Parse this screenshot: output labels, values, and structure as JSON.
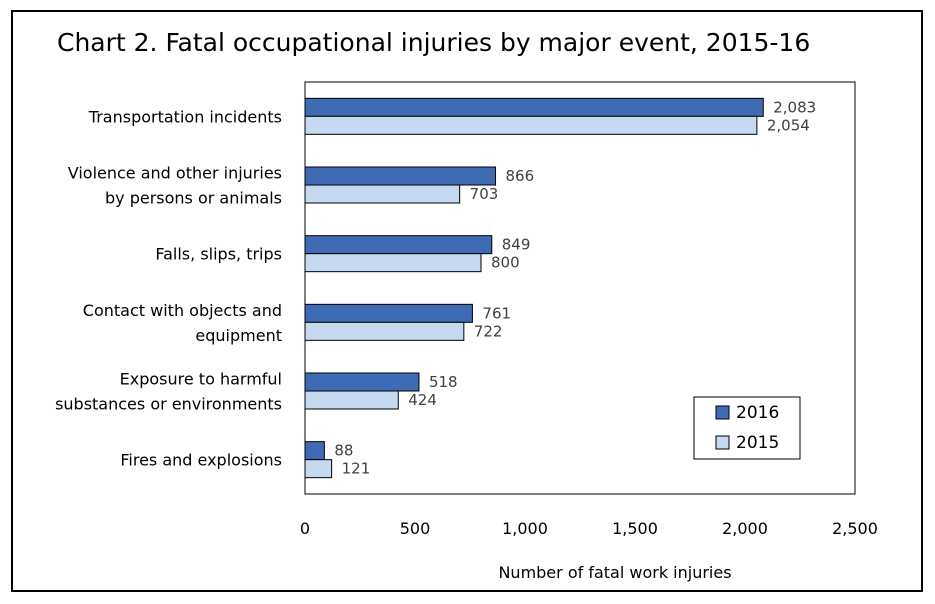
{
  "chart_data": {
    "type": "bar",
    "orientation": "horizontal",
    "title": "Chart 2. Fatal occupational injuries by major event, 2015-16",
    "categories": [
      [
        "Transportation incidents"
      ],
      [
        "Violence and other injuries",
        "by persons or animals"
      ],
      [
        "Falls, slips, trips"
      ],
      [
        "Contact with objects and",
        "equipment"
      ],
      [
        "Exposure to harmful",
        "substances or environments"
      ],
      [
        "Fires and explosions"
      ]
    ],
    "series": [
      {
        "name": "2016",
        "values": [
          2083,
          866,
          849,
          761,
          518,
          88
        ],
        "labels": [
          "2,083",
          "866",
          "849",
          "761",
          "518",
          "88"
        ],
        "color": "#3F6BB5"
      },
      {
        "name": "2015",
        "values": [
          2054,
          703,
          800,
          722,
          424,
          121
        ],
        "labels": [
          "2,054",
          "703",
          "800",
          "722",
          "424",
          "121"
        ],
        "color": "#C5D9F1"
      }
    ],
    "xlabel": "Number of fatal work injuries",
    "xlim": [
      0,
      2500
    ],
    "xticks": [
      0,
      500,
      1000,
      1500,
      2000,
      2500
    ],
    "xtick_labels": [
      "0",
      "500",
      "1,000",
      "1,500",
      "2,000",
      "2,500"
    ],
    "grid": false,
    "legend_position": "bottom-right",
    "bar_outline_color": "#000000"
  }
}
